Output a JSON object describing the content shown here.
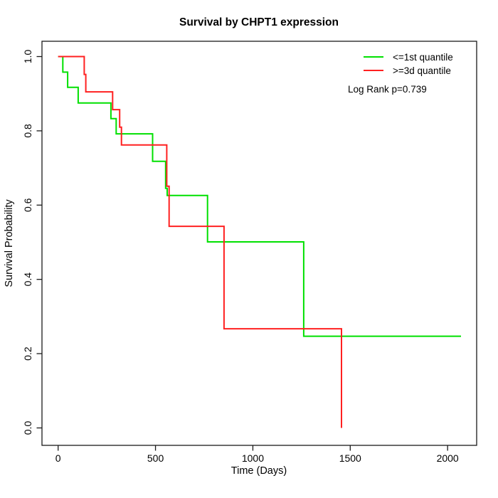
{
  "title": "Survival by CHPT1 expression",
  "x_axis": {
    "label": "Time (Days)",
    "ticks": [
      0,
      500,
      1000,
      1500,
      2000
    ]
  },
  "y_axis": {
    "label": "Survival Probability",
    "ticks": [
      "0.0",
      "0.2",
      "0.4",
      "0.6",
      "0.8",
      "1.0"
    ]
  },
  "legend": {
    "items": [
      {
        "label": "<=1st quantile",
        "color": "#00E000"
      },
      {
        "label": ">=3d quantile",
        "color": "#FF2020"
      }
    ],
    "note": "Log Rank p=0.739"
  },
  "chart_data": {
    "type": "line",
    "subtype": "kaplan-meier-step",
    "title": "Survival by CHPT1 expression",
    "xlabel": "Time (Days)",
    "ylabel": "Survival Probability",
    "xlim": [
      0,
      2150
    ],
    "ylim": [
      0.0,
      1.0
    ],
    "grid": false,
    "legend_position": "top-right",
    "annotation": "Log Rank p=0.739",
    "series": [
      {
        "name": "<=1st quantile",
        "color": "#00E000",
        "end_x": 2069,
        "points": [
          [
            0,
            1.0
          ],
          [
            24,
            0.958
          ],
          [
            49,
            0.917
          ],
          [
            103,
            0.875
          ],
          [
            271,
            0.833
          ],
          [
            298,
            0.792
          ],
          [
            485,
            0.718
          ],
          [
            552,
            0.645
          ],
          [
            560,
            0.626
          ],
          [
            767,
            0.501
          ],
          [
            1261,
            0.247
          ]
        ]
      },
      {
        "name": ">=3d quantile",
        "color": "#FF2020",
        "end_x": 1455,
        "points": [
          [
            0,
            1.0
          ],
          [
            134,
            0.952
          ],
          [
            142,
            0.905
          ],
          [
            280,
            0.857
          ],
          [
            316,
            0.81
          ],
          [
            325,
            0.762
          ],
          [
            558,
            0.651
          ],
          [
            570,
            0.543
          ],
          [
            852,
            0.267
          ],
          [
            1455,
            0.0
          ]
        ]
      }
    ]
  }
}
